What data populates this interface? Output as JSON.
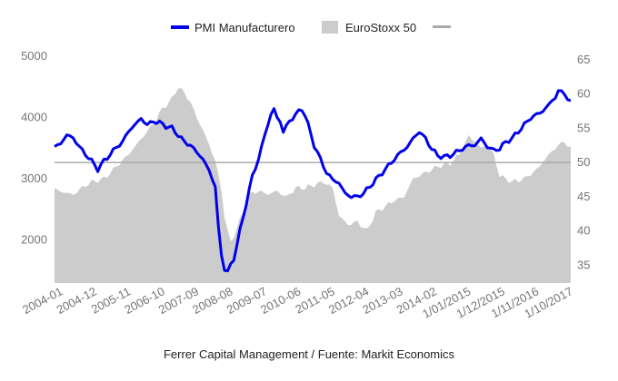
{
  "chart_data": {
    "type": "line",
    "legend": {
      "placement": "top-center",
      "entries": [
        {
          "name": "PMI Manufacturero",
          "color": "#0000ee",
          "kind": "line"
        },
        {
          "name": "EuroStoxx 50",
          "color": "#cccccc",
          "kind": "area"
        },
        {
          "name": "",
          "color": "#aaaaaa",
          "kind": "line"
        }
      ]
    },
    "source_text": "Ferrer Capital Management / Fuente: Markit Economics",
    "x_tick_labels": [
      "2004-01",
      "2004-12",
      "2005-11",
      "2006-10",
      "2007-09",
      "2008-08",
      "2009-07",
      "2010-06",
      "2011-05",
      "2012-04",
      "2013-03",
      "2014-02",
      "1/01/2015",
      "1/12/2015",
      "1/11/2016",
      "1/10/2017"
    ],
    "x_tick_index": [
      0,
      11,
      22,
      33,
      44,
      55,
      66,
      77,
      88,
      99,
      110,
      121,
      132,
      143,
      154,
      165
    ],
    "n_points": 168,
    "left_axis": {
      "ticks": [
        2000,
        3000,
        4000,
        5000
      ],
      "range": [
        1300,
        5000
      ]
    },
    "right_axis": {
      "ticks": [
        35,
        40,
        45,
        50,
        55,
        60,
        65
      ],
      "range": [
        32.4,
        65.5
      ]
    },
    "reference_line": {
      "axis": "right",
      "value": 50,
      "color": "#aaaaaa"
    },
    "grid": false,
    "eurostoxx_anchors": [
      [
        0,
        2830
      ],
      [
        3,
        2780
      ],
      [
        6,
        2740
      ],
      [
        9,
        2860
      ],
      [
        12,
        2950
      ],
      [
        16,
        3000
      ],
      [
        20,
        3200
      ],
      [
        24,
        3400
      ],
      [
        28,
        3650
      ],
      [
        32,
        3900
      ],
      [
        35,
        4150
      ],
      [
        38,
        4300
      ],
      [
        40,
        4500
      ],
      [
        42,
        4400
      ],
      [
        44,
        4250
      ],
      [
        46,
        4000
      ],
      [
        48,
        3800
      ],
      [
        50,
        3550
      ],
      [
        52,
        3300
      ],
      [
        54,
        2800
      ],
      [
        55,
        2400
      ],
      [
        56,
        2150
      ],
      [
        57,
        1950
      ],
      [
        59,
        2200
      ],
      [
        61,
        2450
      ],
      [
        63,
        2750
      ],
      [
        66,
        2800
      ],
      [
        69,
        2750
      ],
      [
        72,
        2800
      ],
      [
        75,
        2700
      ],
      [
        78,
        2850
      ],
      [
        81,
        2850
      ],
      [
        84,
        2900
      ],
      [
        87,
        2950
      ],
      [
        90,
        2850
      ],
      [
        92,
        2400
      ],
      [
        95,
        2250
      ],
      [
        98,
        2300
      ],
      [
        101,
        2150
      ],
      [
        104,
        2450
      ],
      [
        107,
        2550
      ],
      [
        110,
        2650
      ],
      [
        113,
        2700
      ],
      [
        116,
        3000
      ],
      [
        120,
        3100
      ],
      [
        124,
        3200
      ],
      [
        128,
        3250
      ],
      [
        131,
        3400
      ],
      [
        134,
        3700
      ],
      [
        136,
        3600
      ],
      [
        138,
        3500
      ],
      [
        140,
        3550
      ],
      [
        142,
        3400
      ],
      [
        144,
        3050
      ],
      [
        146,
        3000
      ],
      [
        148,
        2950
      ],
      [
        152,
        3000
      ],
      [
        156,
        3150
      ],
      [
        160,
        3400
      ],
      [
        163,
        3550
      ],
      [
        165,
        3600
      ],
      [
        167,
        3500
      ]
    ],
    "pmi_anchors": [
      [
        0,
        52.2
      ],
      [
        2,
        52.8
      ],
      [
        4,
        54.0
      ],
      [
        6,
        53.6
      ],
      [
        8,
        52.3
      ],
      [
        10,
        51.2
      ],
      [
        12,
        50.2
      ],
      [
        14,
        49.0
      ],
      [
        16,
        50.2
      ],
      [
        18,
        51.2
      ],
      [
        20,
        52.2
      ],
      [
        22,
        53.0
      ],
      [
        24,
        54.6
      ],
      [
        26,
        55.5
      ],
      [
        28,
        56.4
      ],
      [
        30,
        55.5
      ],
      [
        32,
        56.0
      ],
      [
        34,
        55.8
      ],
      [
        36,
        55.3
      ],
      [
        38,
        55.0
      ],
      [
        40,
        54.0
      ],
      [
        42,
        53.0
      ],
      [
        44,
        52.5
      ],
      [
        46,
        51.5
      ],
      [
        48,
        50.5
      ],
      [
        50,
        48.8
      ],
      [
        52,
        46.5
      ],
      [
        53,
        40.5
      ],
      [
        54,
        36.5
      ],
      [
        55,
        34.5
      ],
      [
        56,
        34.0
      ],
      [
        58,
        36.0
      ],
      [
        60,
        40.0
      ],
      [
        62,
        44.0
      ],
      [
        64,
        48.0
      ],
      [
        66,
        50.5
      ],
      [
        68,
        54.0
      ],
      [
        70,
        57.0
      ],
      [
        71,
        57.8
      ],
      [
        72,
        56.5
      ],
      [
        73,
        56.0
      ],
      [
        74,
        54.5
      ],
      [
        76,
        56.0
      ],
      [
        78,
        57.0
      ],
      [
        80,
        57.8
      ],
      [
        81,
        57.0
      ],
      [
        82,
        55.5
      ],
      [
        84,
        52.5
      ],
      [
        86,
        50.5
      ],
      [
        88,
        48.5
      ],
      [
        90,
        47.5
      ],
      [
        92,
        47.0
      ],
      [
        94,
        45.5
      ],
      [
        96,
        45.0
      ],
      [
        98,
        45.0
      ],
      [
        100,
        45.5
      ],
      [
        102,
        46.5
      ],
      [
        104,
        47.5
      ],
      [
        106,
        48.5
      ],
      [
        108,
        49.5
      ],
      [
        110,
        50.5
      ],
      [
        112,
        51.5
      ],
      [
        114,
        52.2
      ],
      [
        116,
        53.5
      ],
      [
        118,
        54.5
      ],
      [
        120,
        53.5
      ],
      [
        122,
        52.0
      ],
      [
        124,
        51.0
      ],
      [
        126,
        50.8
      ],
      [
        128,
        51.0
      ],
      [
        130,
        51.5
      ],
      [
        132,
        52.0
      ],
      [
        134,
        52.5
      ],
      [
        136,
        52.5
      ],
      [
        138,
        53.5
      ],
      [
        140,
        52.3
      ],
      [
        142,
        51.8
      ],
      [
        144,
        52.0
      ],
      [
        146,
        53.0
      ],
      [
        148,
        53.5
      ],
      [
        150,
        54.5
      ],
      [
        152,
        55.5
      ],
      [
        154,
        56.5
      ],
      [
        156,
        57.0
      ],
      [
        158,
        57.5
      ],
      [
        160,
        58.5
      ],
      [
        162,
        59.5
      ],
      [
        163,
        60.5
      ],
      [
        165,
        60.0
      ],
      [
        167,
        58.8
      ]
    ]
  }
}
